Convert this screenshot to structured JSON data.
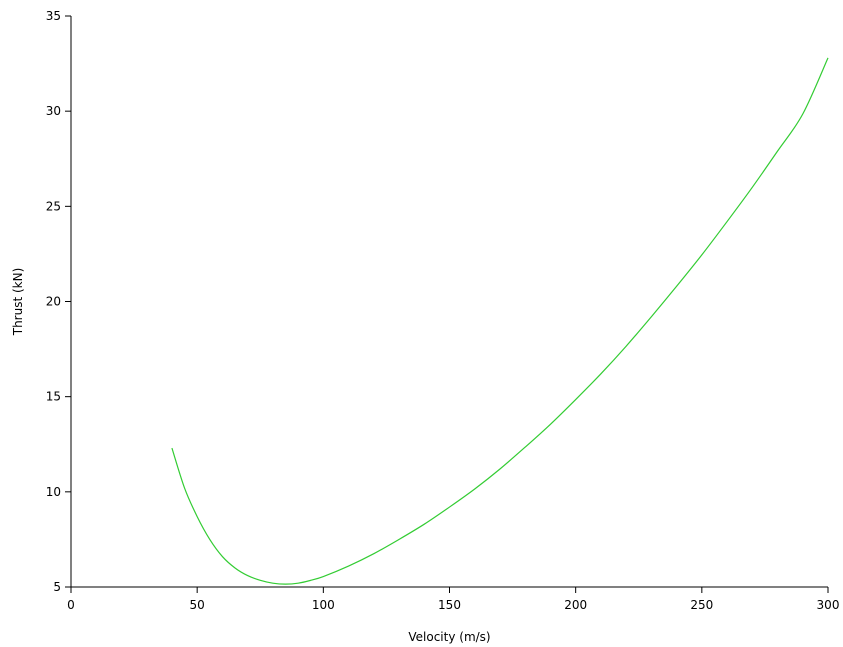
{
  "chart_data": {
    "type": "line",
    "title": "",
    "xlabel": "Velocity (m/s)",
    "ylabel": "Thrust (kN)",
    "xlim": [
      0,
      300
    ],
    "ylim": [
      5,
      35
    ],
    "xticks": [
      0,
      50,
      100,
      150,
      200,
      250,
      300
    ],
    "yticks": [
      5,
      10,
      15,
      20,
      25,
      30,
      35
    ],
    "grid": false,
    "series": [
      {
        "color": "#33cc33",
        "x": [
          40,
          45,
          50,
          55,
          60,
          65,
          70,
          75,
          80,
          85,
          90,
          95,
          100,
          110,
          120,
          130,
          140,
          150,
          160,
          170,
          180,
          190,
          200,
          210,
          220,
          230,
          240,
          250,
          260,
          270,
          280,
          290,
          300
        ],
        "y": [
          12.3,
          10.2,
          8.7,
          7.5,
          6.6,
          6.0,
          5.6,
          5.35,
          5.2,
          5.15,
          5.2,
          5.35,
          5.55,
          6.1,
          6.75,
          7.5,
          8.3,
          9.2,
          10.15,
          11.2,
          12.35,
          13.55,
          14.85,
          16.2,
          17.65,
          19.2,
          20.8,
          22.45,
          24.2,
          26.0,
          27.9,
          29.85,
          32.8
        ]
      }
    ]
  }
}
